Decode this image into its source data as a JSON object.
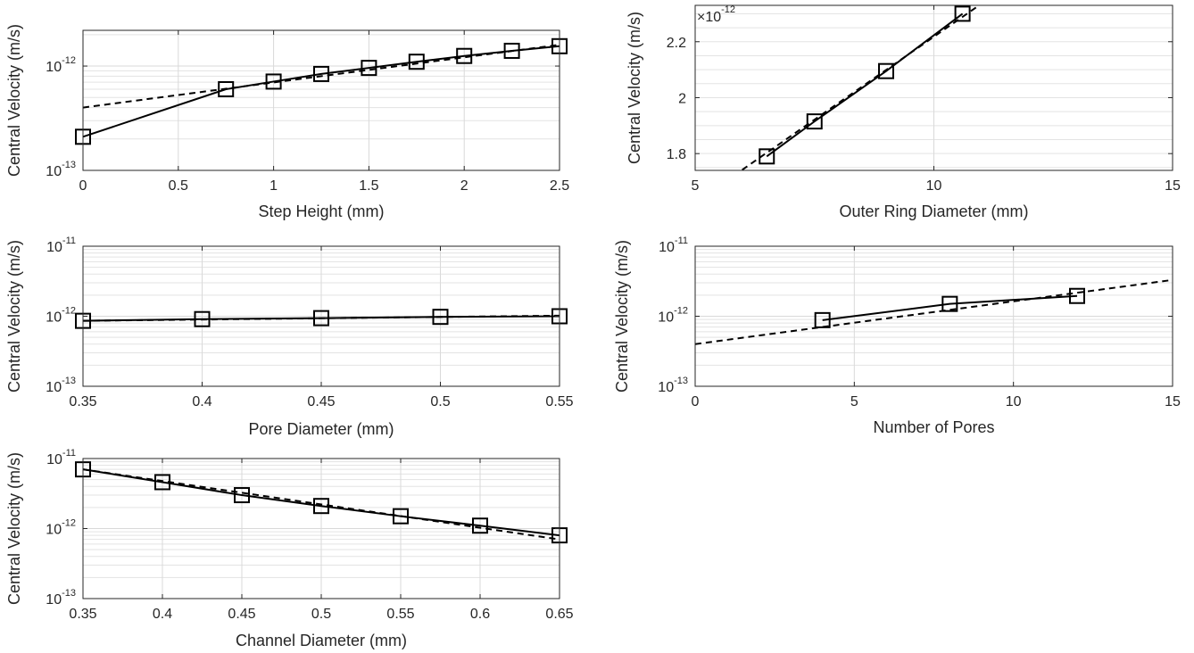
{
  "figure": {
    "background": "#ffffff",
    "axis_color": "#262626",
    "grid_color": "#d9d9d9",
    "line_color": "#000000"
  },
  "chart_data": [
    {
      "id": "step-height",
      "type": "line",
      "xlabel": "Step Height (mm)",
      "ylabel": "Central Velocity (m/s)",
      "yscale": "log",
      "xlim": [
        0,
        2.5
      ],
      "ylim": [
        1e-13,
        2.2e-12
      ],
      "xticks": [
        0,
        0.5,
        1,
        1.5,
        2,
        2.5
      ],
      "xtick_labels": [
        "0",
        "0.5",
        "1",
        "1.5",
        "2",
        "2.5"
      ],
      "yticks": [
        1e-13,
        1e-12
      ],
      "ytick_labels": [
        {
          "base": "10",
          "exp": "-13"
        },
        {
          "base": "10",
          "exp": "-12"
        }
      ],
      "grid": true,
      "series": [
        {
          "style": "solid",
          "marker": "square",
          "x": [
            0,
            0.75,
            1,
            1.25,
            1.5,
            1.75,
            2,
            2.25,
            2.5
          ],
          "y": [
            2.1e-13,
            6e-13,
            7.1e-13,
            8.4e-13,
            9.6e-13,
            1.1e-12,
            1.25e-12,
            1.4e-12,
            1.55e-12
          ]
        },
        {
          "style": "dashed",
          "marker": "none",
          "x": [
            0,
            2.5
          ],
          "y": [
            4e-13,
            1.6e-12
          ]
        }
      ]
    },
    {
      "id": "outer-ring",
      "type": "line",
      "xlabel": "Outer Ring Diameter (mm)",
      "ylabel": "Central Velocity (m/s)",
      "yscale": "linear",
      "xlim": [
        5,
        15
      ],
      "ylim": [
        1.74,
        2.33
      ],
      "xticks": [
        5,
        10,
        15
      ],
      "xtick_labels": [
        "5",
        "10",
        "15"
      ],
      "yticks": [
        1.8,
        2.0,
        2.2
      ],
      "ytick_labels": [
        "1.8",
        "2",
        "2.2"
      ],
      "y_scale_factor": {
        "prefix": "×10",
        "exp": "-12"
      },
      "grid": true,
      "series": [
        {
          "style": "solid",
          "marker": "square",
          "x": [
            6.5,
            7.5,
            9,
            10.6
          ],
          "y": [
            1.79,
            1.915,
            2.095,
            2.3
          ]
        },
        {
          "style": "dashed",
          "marker": "none",
          "x": [
            5.8,
            11.2
          ],
          "y": [
            1.72,
            2.36
          ]
        }
      ]
    },
    {
      "id": "pore-diameter",
      "type": "line",
      "xlabel": "Pore Diameter (mm)",
      "ylabel": "Central Velocity (m/s)",
      "yscale": "log",
      "xlim": [
        0.35,
        0.55
      ],
      "ylim": [
        1e-13,
        1e-11
      ],
      "xticks": [
        0.35,
        0.4,
        0.45,
        0.5,
        0.55
      ],
      "xtick_labels": [
        "0.35",
        "0.4",
        "0.45",
        "0.5",
        "0.55"
      ],
      "yticks": [
        1e-13,
        1e-12,
        1e-11
      ],
      "ytick_labels": [
        {
          "base": "10",
          "exp": "-13"
        },
        {
          "base": "10",
          "exp": "-12"
        },
        {
          "base": "10",
          "exp": "-11"
        }
      ],
      "grid": true,
      "series": [
        {
          "style": "solid",
          "marker": "square",
          "x": [
            0.35,
            0.4,
            0.45,
            0.5,
            0.55
          ],
          "y": [
            8.6e-13,
            9.1e-13,
            9.4e-13,
            9.8e-13,
            1e-12
          ]
        },
        {
          "style": "dashed",
          "marker": "none",
          "x": [
            0.35,
            0.55
          ],
          "y": [
            8.6e-13,
            1.02e-12
          ]
        }
      ]
    },
    {
      "id": "number-of-pores",
      "type": "line",
      "xlabel": "Number of Pores",
      "ylabel": "Central Velocity (m/s)",
      "yscale": "log",
      "xlim": [
        0,
        15
      ],
      "ylim": [
        1e-13,
        1e-11
      ],
      "xticks": [
        0,
        5,
        10,
        15
      ],
      "xtick_labels": [
        "0",
        "5",
        "10",
        "15"
      ],
      "yticks": [
        1e-13,
        1e-12,
        1e-11
      ],
      "ytick_labels": [
        {
          "base": "10",
          "exp": "-13"
        },
        {
          "base": "10",
          "exp": "-12"
        },
        {
          "base": "10",
          "exp": "-11"
        }
      ],
      "grid": true,
      "series": [
        {
          "style": "solid",
          "marker": "square",
          "x": [
            4,
            8,
            12
          ],
          "y": [
            8.8e-13,
            1.5e-12,
            1.95e-12
          ]
        },
        {
          "style": "dashed",
          "marker": "none",
          "x": [
            0,
            15
          ],
          "y": [
            4e-13,
            3.3e-12
          ]
        }
      ]
    },
    {
      "id": "channel-diameter",
      "type": "line",
      "xlabel": "Channel Diameter (mm)",
      "ylabel": "Central Velocity (m/s)",
      "yscale": "log",
      "xlim": [
        0.35,
        0.65
      ],
      "ylim": [
        1e-13,
        1e-11
      ],
      "xticks": [
        0.35,
        0.4,
        0.45,
        0.5,
        0.55,
        0.6,
        0.65
      ],
      "xtick_labels": [
        "0.35",
        "0.4",
        "0.45",
        "0.5",
        "0.55",
        "0.6",
        "0.65"
      ],
      "yticks": [
        1e-13,
        1e-12,
        1e-11
      ],
      "ytick_labels": [
        {
          "base": "10",
          "exp": "-13"
        },
        {
          "base": "10",
          "exp": "-12"
        },
        {
          "base": "10",
          "exp": "-11"
        }
      ],
      "grid": true,
      "series": [
        {
          "style": "solid",
          "marker": "square",
          "x": [
            0.35,
            0.4,
            0.45,
            0.5,
            0.55,
            0.6,
            0.65
          ],
          "y": [
            7e-12,
            4.6e-12,
            3e-12,
            2.1e-12,
            1.5e-12,
            1.1e-12,
            8e-13
          ]
        },
        {
          "style": "dashed",
          "marker": "none",
          "x": [
            0.35,
            0.65
          ],
          "y": [
            7e-12,
            7e-13
          ]
        }
      ]
    }
  ]
}
